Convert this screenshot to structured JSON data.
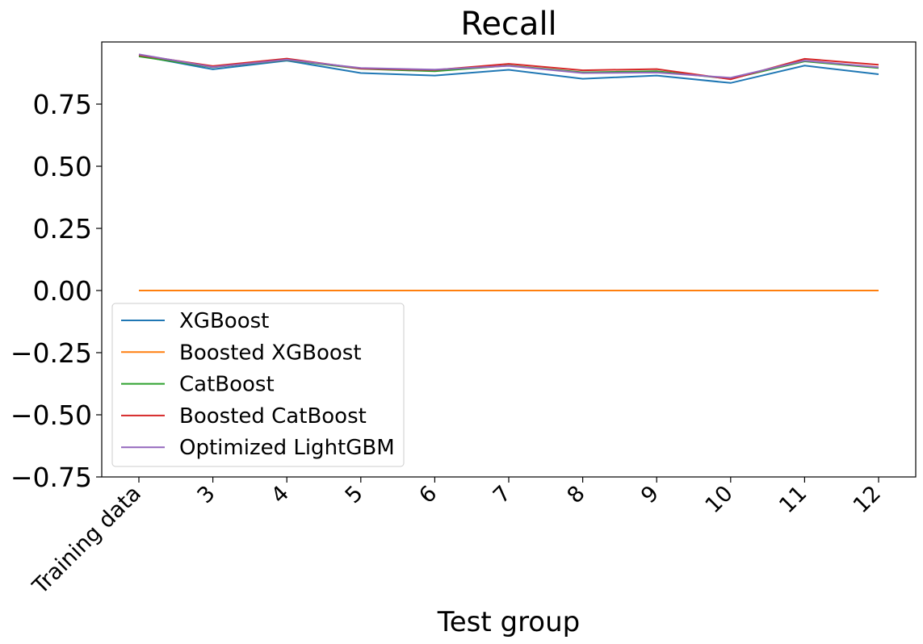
{
  "chart_data": {
    "type": "line",
    "title": "Recall",
    "xlabel": "Test group",
    "ylabel": "",
    "categories": [
      "Training data",
      "3",
      "4",
      "5",
      "6",
      "7",
      "8",
      "9",
      "10",
      "11",
      "12"
    ],
    "ylim": [
      -0.75,
      1.0
    ],
    "yticks": [
      "0.75",
      "0.50",
      "0.25",
      "0.00",
      "−0.25",
      "−0.50",
      "−0.75"
    ],
    "ytick_values": [
      0.75,
      0.5,
      0.25,
      0.0,
      -0.25,
      -0.5,
      -0.75
    ],
    "grid": false,
    "legend_position": "lower-left",
    "series": [
      {
        "name": "XGBoost",
        "color": "#1f77b4",
        "values": [
          0.945,
          0.89,
          0.925,
          0.875,
          0.865,
          0.888,
          0.852,
          0.865,
          0.835,
          0.905,
          0.87
        ]
      },
      {
        "name": "Boosted XGBoost",
        "color": "#ff7f0e",
        "values": [
          0.0,
          0.0,
          0.0,
          0.0,
          0.0,
          0.0,
          0.0,
          0.0,
          0.0,
          0.0,
          0.0
        ]
      },
      {
        "name": "CatBoost",
        "color": "#2ca02c",
        "values": [
          0.942,
          0.898,
          0.928,
          0.892,
          0.882,
          0.905,
          0.878,
          0.882,
          0.852,
          0.922,
          0.895
        ]
      },
      {
        "name": "Boosted CatBoost",
        "color": "#d62728",
        "values": [
          0.947,
          0.903,
          0.933,
          0.893,
          0.887,
          0.912,
          0.886,
          0.891,
          0.85,
          0.932,
          0.908
        ]
      },
      {
        "name": "Optimized LightGBM",
        "color": "#9467bd",
        "values": [
          0.95,
          0.899,
          0.929,
          0.895,
          0.889,
          0.904,
          0.875,
          0.877,
          0.856,
          0.925,
          0.898
        ]
      }
    ]
  }
}
